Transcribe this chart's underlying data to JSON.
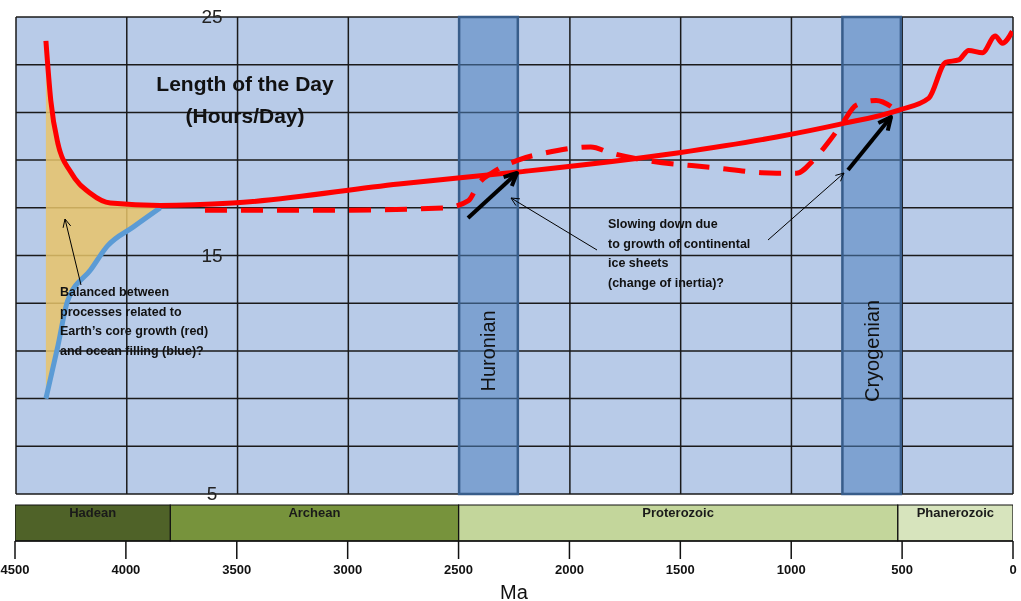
{
  "chart_data": [
    {
      "type": "line",
      "title": "Length of the Day\n(Hours/Day)",
      "xlim": [
        4500,
        0
      ],
      "xticks": [
        4500,
        4000,
        3500,
        3000,
        2500,
        2000,
        1500,
        1000,
        500,
        0
      ],
      "ylim": [
        5,
        25
      ],
      "yticks": [
        5,
        {
          "value": 7,
          "label": null
        },
        {
          "value": 9,
          "label": null
        },
        {
          "value": 11,
          "label": null
        },
        {
          "value": 13,
          "label": null
        },
        15,
        {
          "value": 17,
          "label": null
        },
        {
          "value": 19,
          "label": null
        },
        {
          "value": 21,
          "label": null
        },
        {
          "value": 23,
          "label": null
        },
        25
      ],
      "tick_labels": "y",
      "grid": true,
      "series": [
        {
          "color": "#5b9bd5",
          "x": [
            4365,
            4311,
            4267,
            4163,
            4087,
            3970,
            3849
          ],
          "values": [
            9.0,
            11.2,
            13.1,
            14.4,
            15.4,
            16.2,
            17.0
          ],
          "lower": [
            9.0,
            11.2,
            13.1,
            14.4,
            15.4,
            16.2,
            17.0
          ],
          "upper": [
            24.0,
            19.7,
            18.8,
            17.6,
            17.25,
            17.15,
            17.1
          ]
        },
        {
          "color": "#ff0000",
          "line_style": "dashed",
          "x": [
            3647,
            3000,
            2560,
            2458,
            2413,
            2346,
            2234,
            2112,
            1906,
            1816,
            1664,
            1367,
            1067,
            977,
            901,
            829,
            766,
            708,
            618,
            528
          ],
          "values": [
            16.9,
            16.9,
            17.0,
            17.3,
            18.0,
            18.5,
            19.0,
            19.3,
            19.55,
            19.3,
            19.0,
            18.7,
            18.45,
            18.45,
            19.0,
            19.8,
            20.6,
            21.3,
            21.5,
            21.1
          ]
        },
        {
          "color": "#ff0000",
          "x": [
            4365,
            4343,
            4311,
            4253,
            4163,
            4074,
            3849,
            3522,
            2772,
            2234,
            1515,
            1067,
            784,
            515,
            380,
            304,
            245,
            200,
            138,
            80,
            48,
            3
          ],
          "values": [
            24.0,
            21.5,
            19.7,
            18.5,
            17.6,
            17.2,
            17.1,
            17.2,
            18.0,
            18.5,
            19.3,
            19.97,
            20.5,
            21.1,
            21.6,
            23.1,
            23.2,
            23.6,
            23.5,
            24.2,
            23.9,
            24.4
          ]
        }
      ],
      "bands": [
        {
          "axis": "x",
          "from": 2500,
          "to": 2235,
          "label": "Huronian",
          "color": "#4f81bd"
        },
        {
          "axis": "x",
          "from": 770,
          "to": 506,
          "label": "Cryogenian",
          "color": "#4f81bd"
        }
      ],
      "annotations": [
        "Balanced between\nprocesses related to\nEarth’s core growth (red)\nand ocean filling (blue)?",
        "Slowing down due\nto growth of continental\nice sheets\n(change of inertia)?"
      ]
    },
    {
      "type": "bar",
      "orientation": "horizontal",
      "stacked": true,
      "categories": [
        null
      ],
      "xlim": [
        4500,
        0
      ],
      "xticks": [
        4500,
        4000,
        3500,
        3000,
        2500,
        2000,
        1500,
        1000,
        500,
        0
      ],
      "xlabel": "Ma",
      "tick_labels": "x",
      "series": [
        {
          "name": "Phanerozoic",
          "color": "#d7e4bd",
          "values": [
            520
          ]
        },
        {
          "name": "Proterozoic",
          "color": "#c3d69b",
          "values": [
            1980
          ]
        },
        {
          "name": "Archean",
          "color": "#77933c",
          "values": [
            1300
          ]
        },
        {
          "name": "Hadean",
          "color": "#4f6228",
          "values": [
            700
          ]
        }
      ]
    }
  ]
}
